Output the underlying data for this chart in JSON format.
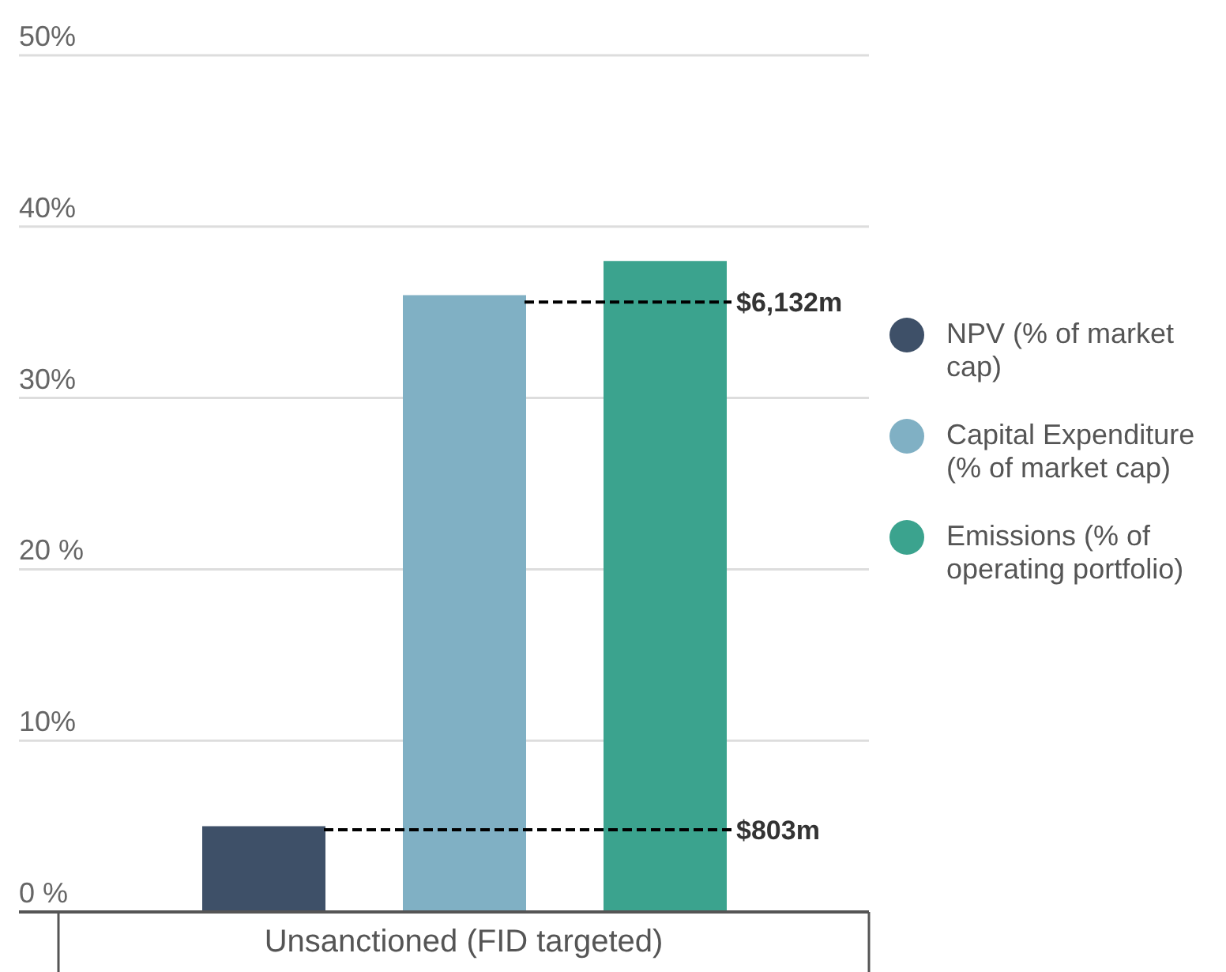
{
  "chart_data": {
    "type": "bar",
    "categories": [
      "Unsanctioned (FID targeted)"
    ],
    "series": [
      {
        "name": "NPV (% of market cap)",
        "color": "#3e5068",
        "values": [
          5
        ]
      },
      {
        "name": "Capital Expenditure (% of market cap)",
        "color": "#80b0c4",
        "values": [
          36
        ]
      },
      {
        "name": "Emissions (% of operating portfolio)",
        "color": "#3ba38e",
        "values": [
          38
        ]
      }
    ],
    "ylim": [
      0,
      50
    ],
    "yticks": [
      {
        "value": 0,
        "label": "0 %"
      },
      {
        "value": 10,
        "label": "10%"
      },
      {
        "value": 20,
        "label": "20 %"
      },
      {
        "value": 30,
        "label": "30%"
      },
      {
        "value": 40,
        "label": "40%"
      },
      {
        "value": 50,
        "label": "50%"
      }
    ],
    "grid": "y",
    "legend": "right",
    "ref_lines": [
      {
        "axis": "y",
        "value": 4.8,
        "label": "$803m",
        "color": "#000000",
        "line_style": "dashed"
      },
      {
        "axis": "y",
        "value": 35.6,
        "label": "$6,132m",
        "color": "#000000",
        "line_style": "dashed"
      }
    ]
  }
}
